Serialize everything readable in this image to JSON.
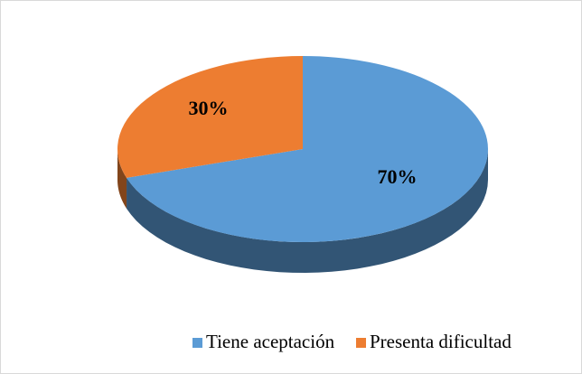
{
  "chart_data": {
    "type": "pie3d",
    "categories": [
      "Tiene aceptación",
      "Presenta dificultad"
    ],
    "values": [
      70,
      30
    ],
    "value_labels": [
      "70%",
      "30%"
    ],
    "colors": [
      "#5b9bd5",
      "#ed7d31"
    ],
    "legend": "bottom"
  }
}
